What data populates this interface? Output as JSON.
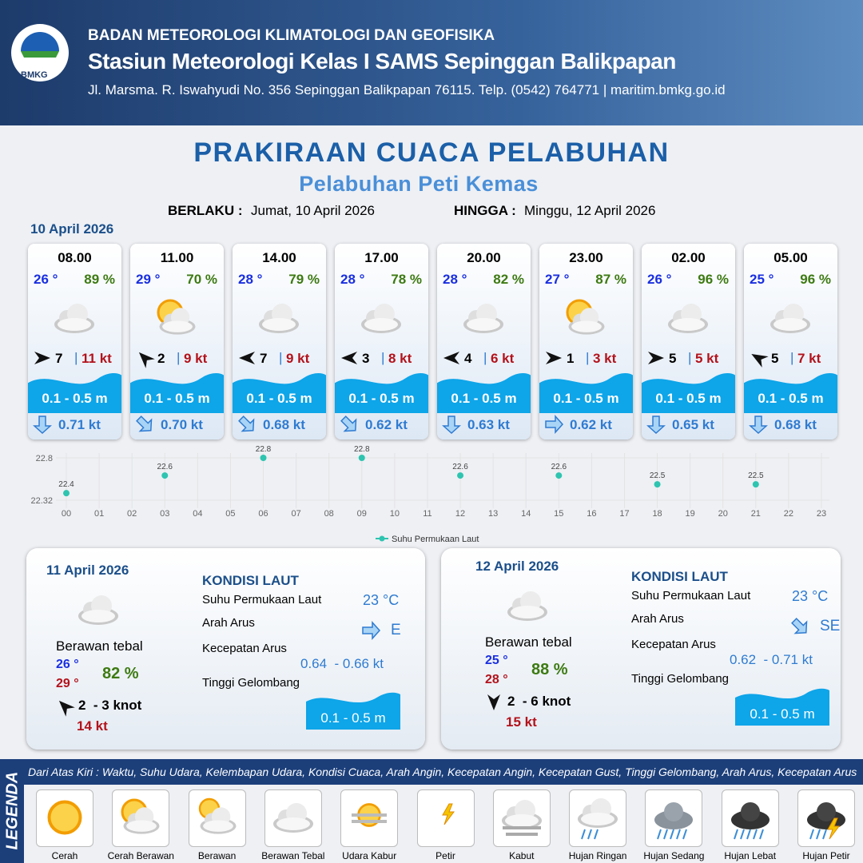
{
  "header": {
    "logo": "BMKG",
    "agency": "BADAN METEOROLOGI KLIMATOLOGI DAN GEOFISIKA",
    "station": "Stasiun Meteorologi Kelas I SAMS Sepinggan Balikpapan",
    "address": "Jl. Marsma. R. Iswahyudi No. 356 Sepinggan Balikpapan 76115. Telp. (0542) 764771 | maritim.bmkg.go.id"
  },
  "title": "PRAKIRAAN CUACA PELABUHAN",
  "subtitle": "Pelabuhan Peti Kemas",
  "validity": {
    "from_label": "BERLAKU :",
    "from": "Jumat, 10 April 2026",
    "to_label": "HINGGA :",
    "to": "Minggu, 12 April 2026"
  },
  "day1": {
    "date": "10 April 2026"
  },
  "forecasts": [
    {
      "time": "08.00",
      "temp": "26 °",
      "humidity": "89 %",
      "wind": "7",
      "gust": "11 kt",
      "wave": "0.1 - 0.5 m",
      "current": "0.71 kt"
    },
    {
      "time": "11.00",
      "temp": "29 °",
      "humidity": "70 %",
      "wind": "2",
      "gust": "9 kt",
      "wave": "0.1 - 0.5 m",
      "current": "0.70 kt"
    },
    {
      "time": "14.00",
      "temp": "28 °",
      "humidity": "79 %",
      "wind": "7",
      "gust": "9 kt",
      "wave": "0.1 - 0.5 m",
      "current": "0.68 kt"
    },
    {
      "time": "17.00",
      "temp": "28 °",
      "humidity": "78 %",
      "wind": "3",
      "gust": "8 kt",
      "wave": "0.1 - 0.5 m",
      "current": "0.62 kt"
    },
    {
      "time": "20.00",
      "temp": "28 °",
      "humidity": "82 %",
      "wind": "4",
      "gust": "6 kt",
      "wave": "0.1 - 0.5 m",
      "current": "0.63 kt"
    },
    {
      "time": "23.00",
      "temp": "27 °",
      "humidity": "87 %",
      "wind": "1",
      "gust": "3 kt",
      "wave": "0.1 - 0.5 m",
      "current": "0.62 kt"
    },
    {
      "time": "02.00",
      "temp": "26 °",
      "humidity": "96 %",
      "wind": "5",
      "gust": "5 kt",
      "wave": "0.1 - 0.5 m",
      "current": "0.65 kt"
    },
    {
      "time": "05.00",
      "temp": "25 °",
      "humidity": "96 %",
      "wind": "5",
      "gust": "7 kt",
      "wave": "0.1 - 0.5 m",
      "current": "0.68 kt"
    }
  ],
  "chart_data": {
    "type": "line",
    "x": [
      0,
      3,
      6,
      9,
      12,
      15,
      18,
      21
    ],
    "series": [
      {
        "name": "Suhu Permukaan Laut",
        "color": "#2ec4b0",
        "values": [
          22.4,
          22.6,
          22.8,
          22.8,
          22.6,
          22.6,
          22.5,
          22.5
        ]
      }
    ],
    "xlim": [
      0,
      23
    ],
    "xticks": [
      {
        "value": 0,
        "label": "00"
      },
      {
        "value": 1,
        "label": "01"
      },
      {
        "value": 2,
        "label": "02"
      },
      {
        "value": 3,
        "label": "03"
      },
      {
        "value": 4,
        "label": "04"
      },
      {
        "value": 5,
        "label": "05"
      },
      {
        "value": 6,
        "label": "06"
      },
      {
        "value": 7,
        "label": "07"
      },
      {
        "value": 8,
        "label": "08"
      },
      {
        "value": 9,
        "label": "09"
      },
      10,
      11,
      12,
      13,
      14,
      15,
      16,
      17,
      18,
      19,
      20,
      21,
      22,
      23
    ],
    "ylim": [
      22.32,
      22.8
    ],
    "yticks": [
      22.32,
      22.8
    ],
    "grid": true
  },
  "days": [
    {
      "date": "11 April 2026",
      "condition": "Berawan tebal",
      "temp_min": "26 °",
      "temp_max": "29 °",
      "humidity": "82 %",
      "wind": "2  - 3 knot",
      "gust": "14 kt",
      "sea": {
        "title": "KONDISI LAUT",
        "sst_label": "Suhu Permukaan Laut",
        "sst": "23 °C",
        "dir_label": "Arah Arus",
        "dir": "E",
        "speed_label": "Kecepatan Arus",
        "speed": "0.64  - 0.66 kt",
        "wave_label": "Tinggi Gelombang",
        "wave": "0.1 - 0.5 m"
      }
    },
    {
      "date": "12 April 2026",
      "condition": "Berawan tebal",
      "temp_min": "25 °",
      "temp_max": "28 °",
      "humidity": "88 %",
      "wind": "2  - 6 knot",
      "gust": "15 kt",
      "sea": {
        "title": "KONDISI LAUT",
        "sst_label": "Suhu Permukaan Laut",
        "sst": "23 °C",
        "dir_label": "Arah Arus",
        "dir": "SE",
        "speed_label": "Kecepatan Arus",
        "speed": "0.62  - 0.71 kt",
        "wave_label": "Tinggi Gelombang",
        "wave": "0.1 - 0.5 m"
      }
    }
  ],
  "legend": {
    "title": "LEGENDA",
    "description": "Dari Atas Kiri : Waktu, Suhu Udara, Kelembapan Udara, Kondisi Cuaca, Arah Angin, Kecepatan Angin, Kecepatan Gust, Tinggi Gelombang, Arah Arus, Kecepatan Arus",
    "items": [
      "Cerah",
      "Cerah Berawan",
      "Berawan",
      "Berawan Tebal",
      "Udara Kabur",
      "Petir",
      "Kabut",
      "Hujan Ringan",
      "Hujan Sedang",
      "Hujan Lebat",
      "Hujan Petir"
    ]
  }
}
